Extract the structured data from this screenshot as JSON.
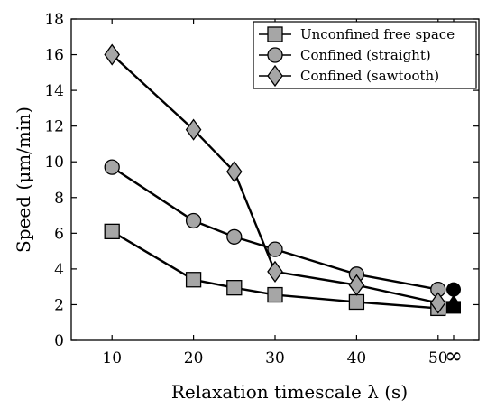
{
  "chart_data": {
    "type": "line",
    "xlabel": "Relaxation timescale λ (s)",
    "ylabel": "Speed (μm/min)",
    "xlim": [
      5,
      55
    ],
    "ylim": [
      0,
      18
    ],
    "x_ticks": [
      {
        "value": 10,
        "label": "10"
      },
      {
        "value": 20,
        "label": "20"
      },
      {
        "value": 30,
        "label": "30"
      },
      {
        "value": 40,
        "label": "40"
      },
      {
        "value": 50,
        "label": "50"
      },
      {
        "value": "inf",
        "label": "∞"
      }
    ],
    "y_ticks": [
      0,
      2,
      4,
      6,
      8,
      10,
      12,
      14,
      16,
      18
    ],
    "grid": false,
    "legend_position": "top-right",
    "series": [
      {
        "name": "Unconfined free space",
        "marker": "square",
        "color": "#a6a6a6",
        "x": [
          10,
          20,
          25,
          30,
          40,
          50
        ],
        "y": [
          6.1,
          3.4,
          2.95,
          2.55,
          2.15,
          1.8
        ],
        "infinity_value": 1.85
      },
      {
        "name": "Confined (straight)",
        "marker": "circle",
        "color": "#a6a6a6",
        "x": [
          10,
          20,
          25,
          30,
          40,
          50
        ],
        "y": [
          9.7,
          6.7,
          5.8,
          5.1,
          3.7,
          2.85
        ],
        "infinity_value": 2.85
      },
      {
        "name": "Confined (sawtooth)",
        "marker": "diamond",
        "color": "#a6a6a6",
        "x": [
          10,
          20,
          25,
          30,
          40,
          50
        ],
        "y": [
          16.0,
          11.8,
          9.45,
          3.85,
          3.1,
          2.1
        ],
        "infinity_value": 2.1
      }
    ],
    "infinity_marker_color": "#000000"
  }
}
